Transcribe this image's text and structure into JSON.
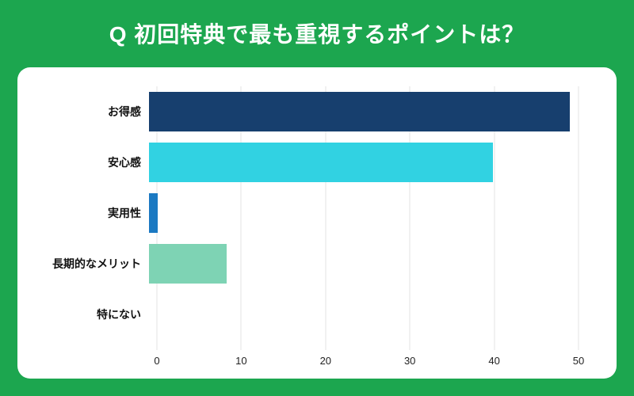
{
  "header": {
    "title": "Q 初回特典で最も重視するポイントは？"
  },
  "colors": {
    "background": "#1CA64F",
    "card": "#FFFFFF",
    "grid": "#E3E3E3",
    "title_text": "#FFFFFF",
    "label_text": "#111111"
  },
  "chart_data": {
    "type": "bar",
    "orientation": "horizontal",
    "title": "Q 初回特典で最も重視するポイントは？",
    "categories": [
      "お得感",
      "安心感",
      "実用性",
      "長期的なメリット",
      "特にない"
    ],
    "values": [
      49,
      40,
      1,
      9,
      0
    ],
    "bar_colors": [
      "#173F6E",
      "#31D2E2",
      "#1B79C2",
      "#7ED3B4",
      "#CCCCCC"
    ],
    "xlabel": "",
    "ylabel": "",
    "xlim": [
      0,
      50
    ],
    "x_ticks": [
      0,
      10,
      20,
      30,
      40,
      50
    ],
    "grid": true,
    "legend": false
  }
}
